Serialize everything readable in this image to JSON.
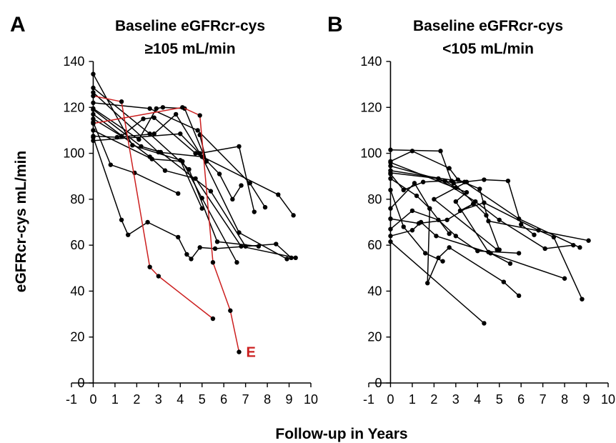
{
  "figure": {
    "xlabel": "Follow-up in Years",
    "ylabel": "eGFRcr-cys mL/min"
  },
  "colors": {
    "black": "#000000",
    "red": "#cc1f1f"
  },
  "chart_data": [
    {
      "type": "line",
      "panel": "A",
      "title_line1": "Baseline eGFRcr-cys",
      "title_line2": "≥105 mL/min",
      "xlim": [
        -1,
        10
      ],
      "ylim": [
        0,
        140
      ],
      "xticks": [
        -1,
        0,
        1,
        2,
        3,
        4,
        5,
        6,
        7,
        8,
        9,
        10
      ],
      "yticks": [
        0,
        20,
        40,
        60,
        80,
        100,
        120,
        140
      ],
      "annotation": {
        "text": "E",
        "color": "#cc1f1f"
      },
      "series": [
        {
          "color": "#000000",
          "points": [
            [
              0,
              134.5
            ],
            [
              1.8,
              103.5
            ],
            [
              4,
              97
            ],
            [
              5,
              76
            ]
          ]
        },
        {
          "color": "#000000",
          "points": [
            [
              0,
              128.5
            ],
            [
              2.6,
              108.5
            ],
            [
              4.4,
              93
            ],
            [
              5.7,
              61.5
            ],
            [
              7.6,
              59.5
            ]
          ]
        },
        {
          "color": "#000000",
          "points": [
            [
              0,
              126.5
            ],
            [
              3,
              100.5
            ],
            [
              5,
              98.5
            ],
            [
              6.7,
              65.5
            ],
            [
              8.9,
              54
            ]
          ]
        },
        {
          "color": "#000000",
          "points": [
            [
              0,
              122
            ],
            [
              2.6,
              119.5
            ],
            [
              4.8,
              110
            ],
            [
              7.2,
              87
            ],
            [
              7.9,
              76.5
            ]
          ]
        },
        {
          "color": "#000000",
          "points": [
            [
              0,
              119
            ],
            [
              2.2,
              103
            ],
            [
              3.1,
              100.5
            ],
            [
              5.4,
              83.5
            ],
            [
              7,
              59.5
            ]
          ]
        },
        {
          "color": "#000000",
          "points": [
            [
              0,
              117
            ],
            [
              2.6,
              98.5
            ],
            [
              3.3,
              92.5
            ],
            [
              4.7,
              89
            ],
            [
              6.8,
              59.5
            ],
            [
              9.3,
              54.5
            ]
          ]
        },
        {
          "color": "#000000",
          "points": [
            [
              0,
              113.5
            ],
            [
              0.8,
              95
            ],
            [
              1.9,
              91.5
            ],
            [
              3.9,
              82.5
            ]
          ]
        },
        {
          "color": "#000000",
          "points": [
            [
              0,
              110
            ],
            [
              2.7,
              97.5
            ],
            [
              4.1,
              96.5
            ],
            [
              5,
              80.5
            ],
            [
              6.6,
              52.5
            ]
          ]
        },
        {
          "color": "#000000",
          "points": [
            [
              0,
              107
            ],
            [
              1.3,
              71
            ],
            [
              1.6,
              64.5
            ],
            [
              2.5,
              70
            ],
            [
              3.9,
              63.5
            ],
            [
              4.3,
              56
            ],
            [
              4.5,
              54
            ],
            [
              4.9,
              59
            ],
            [
              5.6,
              58.5
            ],
            [
              8.4,
              60.5
            ],
            [
              9.1,
              54.5
            ]
          ]
        },
        {
          "color": "#000000",
          "points": [
            [
              0,
              105.5
            ],
            [
              4,
              108.5
            ],
            [
              5.8,
              91
            ],
            [
              6.4,
              80
            ],
            [
              6.8,
              86
            ]
          ]
        },
        {
          "color": "#000000",
          "points": [
            [
              0,
              115
            ],
            [
              1.3,
              107.5
            ],
            [
              2.3,
              115
            ],
            [
              2.8,
              115.5
            ],
            [
              4.7,
              100
            ],
            [
              8.5,
              82
            ],
            [
              9.2,
              73
            ]
          ]
        },
        {
          "color": "#000000",
          "points": [
            [
              0,
              107.5
            ],
            [
              1.1,
              107
            ],
            [
              2.8,
              108.5
            ],
            [
              3.8,
              117
            ],
            [
              4.9,
              100
            ],
            [
              6.7,
              103
            ],
            [
              7.4,
              74.5
            ]
          ]
        },
        {
          "color": "#000000",
          "points": [
            [
              0,
              119.5
            ],
            [
              2.1,
              106
            ],
            [
              2.9,
              119.5
            ],
            [
              3.2,
              120
            ],
            [
              4.2,
              119.5
            ],
            [
              5.2,
              96.5
            ],
            [
              4.9,
              108
            ]
          ]
        },
        {
          "color": "#cc1f1f",
          "points": [
            [
              0,
              125
            ],
            [
              1.3,
              122.5
            ],
            [
              2.6,
              50.5
            ],
            [
              3,
              46.5
            ],
            [
              5.5,
              28
            ]
          ]
        },
        {
          "color": "#cc1f1f",
          "points": [
            [
              0,
              113
            ],
            [
              4.1,
              120
            ],
            [
              4.9,
              116.5
            ],
            [
              5.5,
              52.5
            ],
            [
              6.3,
              31.5
            ],
            [
              6.7,
              13.5
            ]
          ]
        }
      ]
    },
    {
      "type": "line",
      "panel": "B",
      "title_line1": "Baseline eGFRcr-cys",
      "title_line2": "<105 mL/min",
      "xlim": [
        -1,
        10
      ],
      "ylim": [
        0,
        140
      ],
      "xticks": [
        -1,
        0,
        1,
        2,
        3,
        4,
        5,
        6,
        7,
        8,
        9,
        10
      ],
      "yticks": [
        0,
        20,
        40,
        60,
        80,
        100,
        120,
        140
      ],
      "series": [
        {
          "color": "#000000",
          "points": [
            [
              0,
              101.5
            ],
            [
              2.3,
              101
            ],
            [
              2.8,
              88
            ],
            [
              4.4,
              73
            ],
            [
              5,
              58
            ]
          ]
        },
        {
          "color": "#000000",
          "points": [
            [
              0,
              96.5
            ],
            [
              1,
              101
            ],
            [
              2.7,
              93.5
            ],
            [
              3.1,
              88.5
            ],
            [
              4.1,
              84.5
            ],
            [
              4.5,
              70.5
            ],
            [
              9.1,
              62
            ]
          ]
        },
        {
          "color": "#000000",
          "points": [
            [
              0,
              94.5
            ],
            [
              2.9,
              87
            ],
            [
              4.3,
              88.5
            ],
            [
              5.4,
              88
            ],
            [
              6,
              69
            ],
            [
              6.6,
              64.5
            ]
          ]
        },
        {
          "color": "#000000",
          "points": [
            [
              0,
              92.5
            ],
            [
              3.4,
              87.5
            ],
            [
              5.9,
              71.5
            ],
            [
              8.7,
              59
            ]
          ]
        },
        {
          "color": "#000000",
          "points": [
            [
              0,
              91.5
            ],
            [
              2.2,
              89
            ],
            [
              3.9,
              79
            ],
            [
              5,
              71
            ],
            [
              7.1,
              58.5
            ],
            [
              8.4,
              60
            ]
          ]
        },
        {
          "color": "#000000",
          "points": [
            [
              0,
              91
            ],
            [
              0.6,
              84
            ],
            [
              1.5,
              87.5
            ],
            [
              2.5,
              88
            ],
            [
              3,
              85
            ],
            [
              3.5,
              87.5
            ],
            [
              2,
              80
            ],
            [
              4.9,
              58
            ]
          ]
        },
        {
          "color": "#000000",
          "points": [
            [
              0,
              84
            ],
            [
              0.6,
              68
            ],
            [
              1.6,
              56.5
            ],
            [
              2.4,
              53
            ]
          ]
        },
        {
          "color": "#000000",
          "points": [
            [
              0,
              76
            ],
            [
              1.1,
              87
            ],
            [
              1.8,
              76
            ],
            [
              2.7,
              65
            ]
          ]
        },
        {
          "color": "#000000",
          "points": [
            [
              0,
              71.5
            ],
            [
              1.3,
              69.5
            ],
            [
              2.6,
              71
            ],
            [
              3.8,
              78
            ],
            [
              3.2,
              75
            ],
            [
              4.3,
              78.5
            ],
            [
              6.8,
              66.5
            ],
            [
              7.5,
              63.5
            ],
            [
              8.8,
              36.5
            ]
          ]
        },
        {
          "color": "#000000",
          "points": [
            [
              0,
              67
            ],
            [
              1,
              75
            ],
            [
              2.2,
              71
            ],
            [
              3,
              64
            ],
            [
              4,
              57.5
            ],
            [
              5.9,
              56.5
            ]
          ]
        },
        {
          "color": "#000000",
          "points": [
            [
              0,
              64
            ],
            [
              1,
              66.5
            ],
            [
              1.4,
              70
            ],
            [
              2.1,
              64
            ],
            [
              4.6,
              56.5
            ],
            [
              8,
              45.5
            ]
          ]
        },
        {
          "color": "#000000",
          "points": [
            [
              0,
              61.5
            ],
            [
              4.3,
              26
            ]
          ]
        },
        {
          "color": "#000000",
          "points": [
            [
              0,
              89
            ],
            [
              1.2,
              81.5
            ],
            [
              1.8,
              76
            ],
            [
              1.7,
              43.5
            ],
            [
              2.2,
              54.5
            ],
            [
              2.7,
              59
            ],
            [
              5.2,
              44
            ],
            [
              5.9,
              38
            ]
          ]
        },
        {
          "color": "#000000",
          "points": [
            [
              0,
              96
            ],
            [
              3.5,
              83
            ],
            [
              3,
              79
            ],
            [
              4.5,
              57
            ],
            [
              5.5,
              52
            ]
          ]
        }
      ]
    }
  ]
}
